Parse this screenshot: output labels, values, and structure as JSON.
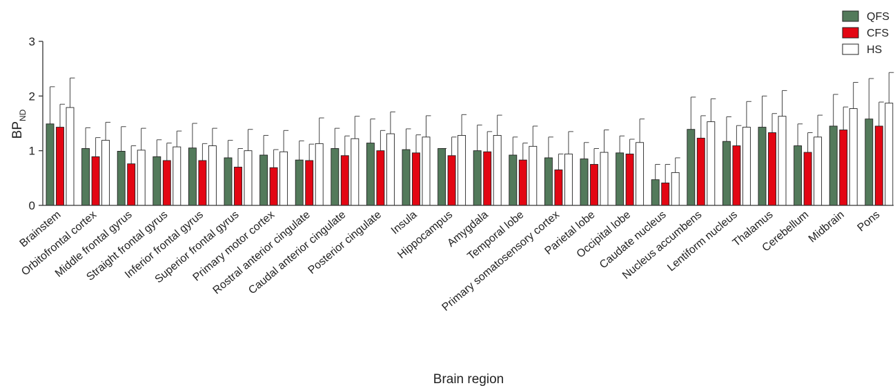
{
  "chart_data": {
    "type": "bar",
    "xlabel": "Brain region",
    "ylabel": "BP",
    "ylabel_subscript": "ND",
    "ylim": [
      0,
      3
    ],
    "yticks": [
      "0",
      "1",
      "2",
      "3"
    ],
    "grid": false,
    "legend_position": "top-right",
    "error_bars": "upper only",
    "categories": [
      "Brainstem",
      "Orbitofrontal cortex",
      "Middle frontal gyrus",
      "Straight frontal gyrus",
      "Inferior frontal gyrus",
      "Superior frontal gyrus",
      "Primary motor cortex",
      "Rostral anterior cingulate",
      "Caudal anterior cingulate",
      "Posterior cingulate",
      "Insula",
      "Hippocampus",
      "Amygdala",
      "Temporal lobe",
      "Primary somatosensory cortex",
      "Parietal lobe",
      "Occipital lobe",
      "Caudate nucleus",
      "Nucleus accumbens",
      "Lentiform nucleus",
      "Thalamus",
      "Cerebellum",
      "Midbrain",
      "Pons"
    ],
    "series": [
      {
        "name": "QFS",
        "color": "#537A5B",
        "values": [
          1.49,
          1.04,
          0.99,
          0.89,
          1.05,
          0.87,
          0.92,
          0.83,
          1.04,
          1.14,
          1.02,
          1.04,
          1.0,
          0.92,
          0.87,
          0.85,
          0.96,
          0.47,
          1.39,
          1.17,
          1.43,
          1.09,
          1.45,
          1.58
        ],
        "error_upper": [
          2.17,
          1.42,
          1.44,
          1.2,
          1.5,
          1.19,
          1.28,
          1.18,
          1.41,
          1.58,
          1.4,
          1.04,
          1.47,
          1.25,
          1.25,
          1.15,
          1.27,
          0.75,
          1.98,
          1.62,
          2.0,
          1.49,
          2.03,
          2.32
        ]
      },
      {
        "name": "CFS",
        "color": "#E30613",
        "values": [
          1.43,
          0.89,
          0.76,
          0.82,
          0.82,
          0.7,
          0.69,
          0.82,
          0.91,
          1.0,
          0.96,
          0.91,
          0.98,
          0.83,
          0.65,
          0.75,
          0.94,
          0.41,
          1.23,
          1.09,
          1.33,
          0.97,
          1.38,
          1.45
        ],
        "error_upper": [
          1.85,
          1.24,
          1.09,
          1.14,
          1.13,
          1.04,
          1.02,
          1.12,
          1.27,
          1.37,
          1.29,
          1.25,
          1.35,
          1.14,
          0.94,
          1.04,
          1.21,
          0.75,
          1.64,
          1.46,
          1.68,
          1.33,
          1.8,
          1.89
        ]
      },
      {
        "name": "HS",
        "color": "#FFFFFF",
        "values": [
          1.79,
          1.19,
          1.01,
          1.07,
          1.09,
          1.0,
          0.98,
          1.13,
          1.22,
          1.31,
          1.25,
          1.28,
          1.28,
          1.08,
          0.94,
          0.97,
          1.15,
          0.6,
          1.53,
          1.43,
          1.63,
          1.25,
          1.77,
          1.87
        ],
        "error_upper": [
          2.33,
          1.52,
          1.41,
          1.36,
          1.41,
          1.39,
          1.37,
          1.6,
          1.63,
          1.71,
          1.64,
          1.66,
          1.65,
          1.45,
          1.35,
          1.38,
          1.58,
          0.87,
          1.95,
          1.9,
          2.1,
          1.65,
          2.25,
          2.43
        ]
      }
    ]
  }
}
